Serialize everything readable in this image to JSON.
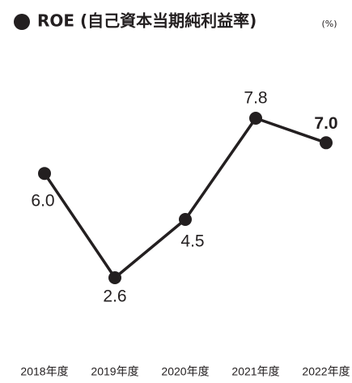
{
  "chart_data": {
    "type": "line",
    "title": "ROE (自己資本当期純利益率)",
    "unit": "(%)",
    "categories": [
      "2018年度",
      "2019年度",
      "2020年度",
      "2021年度",
      "2022年度"
    ],
    "values": [
      6.0,
      2.6,
      4.5,
      7.8,
      7.0
    ],
    "value_labels": [
      "6.0",
      "2.6",
      "4.5",
      "7.8",
      "7.0"
    ],
    "color": "#231f20"
  }
}
